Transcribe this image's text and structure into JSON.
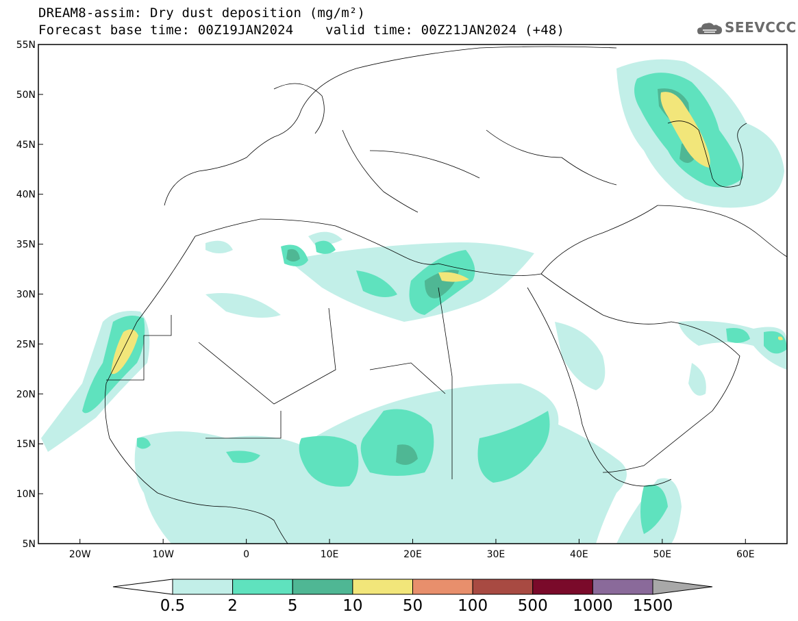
{
  "header": {
    "title_line1": "DREAM8-assim: Dry dust deposition (mg/m²)",
    "title_line2": "Forecast base time: 00Z19JAN2024    valid time: 00Z21JAN2024 (+48)",
    "logo_text": "SEEVCCC"
  },
  "map": {
    "lon_range": [
      -25,
      65
    ],
    "lat_range": [
      5,
      55
    ],
    "lon_ticks": [
      {
        "lon": -20,
        "label": "20W"
      },
      {
        "lon": -10,
        "label": "10W"
      },
      {
        "lon": 0,
        "label": "0"
      },
      {
        "lon": 10,
        "label": "10E"
      },
      {
        "lon": 20,
        "label": "20E"
      },
      {
        "lon": 30,
        "label": "30E"
      },
      {
        "lon": 40,
        "label": "40E"
      },
      {
        "lon": 50,
        "label": "50E"
      },
      {
        "lon": 60,
        "label": "60E"
      }
    ],
    "lat_ticks": [
      {
        "lat": 55,
        "label": "55N"
      },
      {
        "lat": 50,
        "label": "50N"
      },
      {
        "lat": 45,
        "label": "45N"
      },
      {
        "lat": 40,
        "label": "40N"
      },
      {
        "lat": 35,
        "label": "35N"
      },
      {
        "lat": 30,
        "label": "30N"
      },
      {
        "lat": 25,
        "label": "25N"
      },
      {
        "lat": 20,
        "label": "20N"
      },
      {
        "lat": 15,
        "label": "15N"
      },
      {
        "lat": 10,
        "label": "10N"
      },
      {
        "lat": 5,
        "label": "5N"
      }
    ]
  },
  "colorbar": {
    "levels": [
      "0.5",
      "2",
      "5",
      "10",
      "50",
      "100",
      "500",
      "1000",
      "1500"
    ],
    "colors": [
      "#ffffff",
      "#c2efe8",
      "#5fe2be",
      "#4fb794",
      "#f2e67a",
      "#e88f6c",
      "#a84a42",
      "#7a0a2a",
      "#8a6a9a",
      "#a8a8a8"
    ]
  }
}
